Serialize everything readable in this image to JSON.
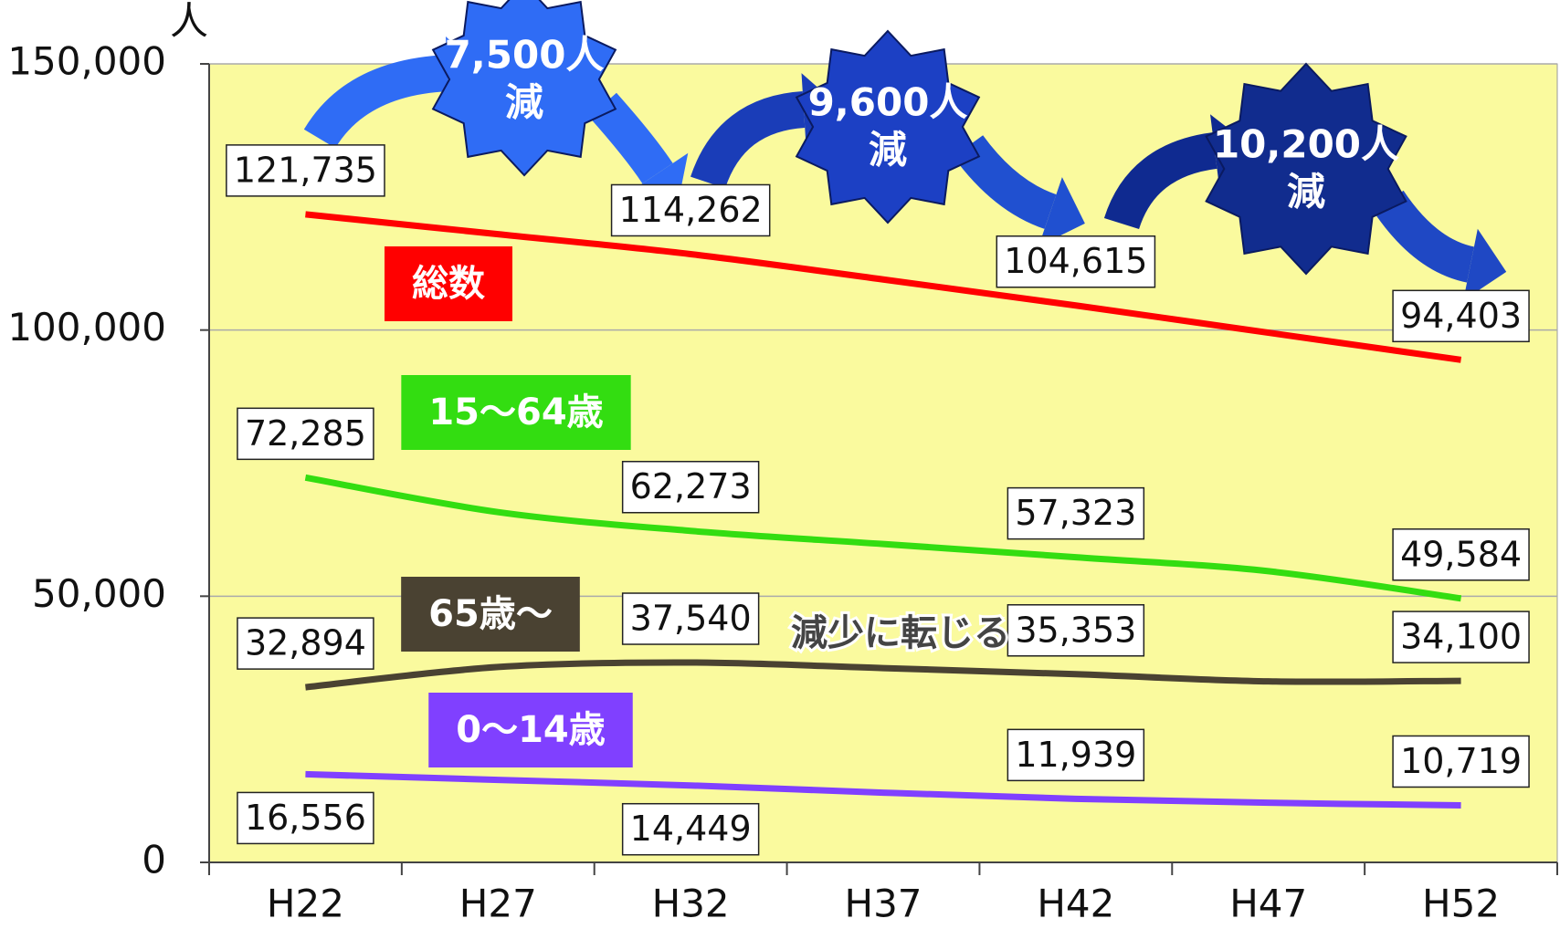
{
  "chart_data": {
    "type": "line",
    "y_unit": "人",
    "categories": [
      "H22",
      "H27",
      "H32",
      "H37",
      "H42",
      "H47",
      "H52"
    ],
    "series": [
      {
        "name": "総数",
        "color": "#ff0000",
        "values": [
          121735,
          118000,
          114262,
          109500,
          104615,
          99500,
          94403
        ],
        "value_labels": [
          "121,735",
          null,
          "114,262",
          null,
          "104,615",
          null,
          "94,403"
        ]
      },
      {
        "name": "15～64歳",
        "color": "#33dd11",
        "values": [
          72285,
          65800,
          62273,
          59800,
          57323,
          54700,
          49584
        ],
        "value_labels": [
          "72,285",
          null,
          "62,273",
          null,
          "57,323",
          null,
          "49,584"
        ]
      },
      {
        "name": "65歳～",
        "color": "#4a4232",
        "values": [
          32894,
          36700,
          37540,
          36500,
          35353,
          34000,
          34100
        ],
        "value_labels": [
          "32,894",
          null,
          "37,540",
          null,
          "35,353",
          null,
          "34,100"
        ]
      },
      {
        "name": "0～14歳",
        "color": "#8040ff",
        "values": [
          16556,
          15500,
          14449,
          13100,
          11939,
          11200,
          10719
        ],
        "value_labels": [
          "16,556",
          null,
          "14,449",
          null,
          "11,939",
          null,
          "10,719"
        ]
      }
    ],
    "annotations": [
      {
        "lines": [
          "7,500人",
          "減"
        ],
        "color": "#2f6cf5"
      },
      {
        "lines": [
          "9,600人",
          "減"
        ],
        "color": "#1c40c4"
      },
      {
        "lines": [
          "10,200人",
          "減"
        ],
        "color": "#112c8e"
      }
    ],
    "note": "減少に転じる",
    "ylim": [
      0,
      150000
    ],
    "yticks": [
      0,
      {
        "value": 50000,
        "label": "50,000"
      },
      {
        "value": 100000,
        "label": "100,000"
      },
      {
        "value": 150000,
        "label": "150,000"
      }
    ],
    "grid": true,
    "plot_background": "#fafa9e"
  }
}
